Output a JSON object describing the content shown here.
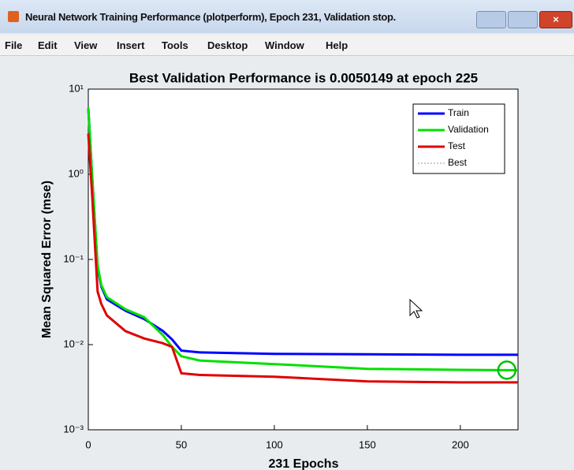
{
  "window": {
    "title": "Neural Network Training Performance (plotperform), Epoch 231, Validation stop.",
    "menu": [
      "File",
      "Edit",
      "View",
      "Insert",
      "Tools",
      "Desktop",
      "Window",
      "Help"
    ]
  },
  "chart_data": {
    "type": "line",
    "title": "Best Validation Performance is 0.0050149 at epoch 225",
    "x_label": "231 Epochs",
    "y_label": "Mean Squared Error  (mse)",
    "log_y": true,
    "x": [
      0,
      2,
      5,
      7,
      10,
      20,
      30,
      40,
      45,
      50,
      60,
      100,
      150,
      200,
      225,
      231
    ],
    "series": [
      {
        "name": "Train",
        "color": "#0000ff",
        "values": [
          6.0,
          1.0,
          0.08,
          0.048,
          0.034,
          0.025,
          0.02,
          0.0145,
          0.0115,
          0.0085,
          0.0081,
          0.0078,
          0.0077,
          0.0076,
          0.0076,
          0.0076
        ]
      },
      {
        "name": "Validation",
        "color": "#00e000",
        "values": [
          6.0,
          1.0,
          0.085,
          0.05,
          0.036,
          0.026,
          0.021,
          0.013,
          0.0094,
          0.0073,
          0.0065,
          0.0059,
          0.0052,
          0.00505,
          0.0050149,
          0.005
        ]
      },
      {
        "name": "Test",
        "color": "#e00000",
        "values": [
          3.0,
          0.6,
          0.042,
          0.03,
          0.022,
          0.0144,
          0.0118,
          0.0104,
          0.0094,
          0.0046,
          0.0044,
          0.0042,
          0.0037,
          0.0036,
          0.0036,
          0.0036
        ]
      }
    ],
    "best": {
      "name": "Best",
      "x": 225,
      "value": 0.0050149,
      "color": "#00c000"
    },
    "xlim": [
      0,
      231
    ],
    "xticks": [
      0,
      50,
      100,
      150,
      200
    ],
    "ylim": [
      0.001,
      10
    ],
    "yticks": [
      {
        "value": 10,
        "label": "10¹"
      },
      {
        "value": 1,
        "label": "10⁰"
      },
      {
        "value": 0.1,
        "label": "10⁻¹"
      },
      {
        "value": 0.01,
        "label": "10⁻²"
      },
      {
        "value": 0.001,
        "label": "10⁻³"
      }
    ],
    "legend": "upper right",
    "grid": false
  }
}
